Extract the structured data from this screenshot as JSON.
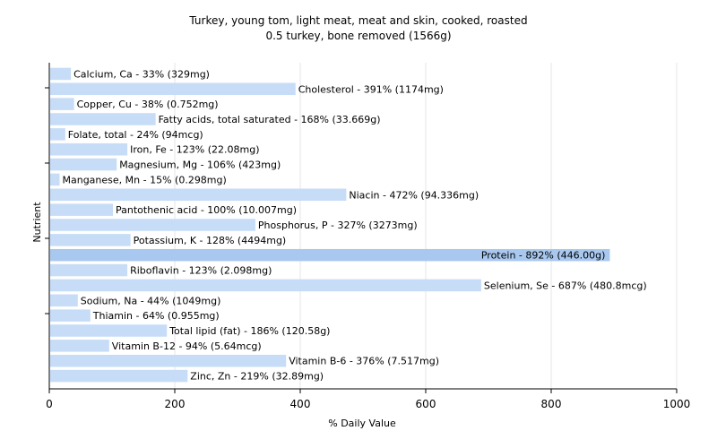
{
  "chart_data": {
    "type": "bar",
    "orientation": "horizontal",
    "title": "Turkey, young tom, light meat, meat and skin, cooked, roasted",
    "subtitle": "0.5 turkey, bone removed (1566g)",
    "xlabel": "% Daily Value",
    "ylabel": "Nutrient",
    "xlim": [
      0,
      1000
    ],
    "xticks": [
      "0",
      "200",
      "400",
      "600",
      "800",
      "1000"
    ],
    "grid": "vertical",
    "bar_color": "#c6dcf7",
    "highlight_color": "#a9c8ef",
    "categories": [
      "Calcium, Ca",
      "Cholesterol",
      "Copper, Cu",
      "Fatty acids, total saturated",
      "Folate, total",
      "Iron, Fe",
      "Magnesium, Mg",
      "Manganese, Mn",
      "Niacin",
      "Pantothenic acid",
      "Phosphorus, P",
      "Potassium, K",
      "Protein",
      "Riboflavin",
      "Selenium, Se",
      "Sodium, Na",
      "Thiamin",
      "Total lipid (fat)",
      "Vitamin B-12",
      "Vitamin B-6",
      "Zinc, Zn"
    ],
    "values": [
      33,
      391,
      38,
      168,
      24,
      123,
      106,
      15,
      472,
      100,
      327,
      128,
      892,
      123,
      687,
      44,
      64,
      186,
      94,
      376,
      219
    ],
    "labels": [
      "Calcium, Ca - 33% (329mg)",
      "Cholesterol - 391% (1174mg)",
      "Copper, Cu - 38% (0.752mg)",
      "Fatty acids, total saturated - 168% (33.669g)",
      "Folate, total - 24% (94mcg)",
      "Iron, Fe - 123% (22.08mg)",
      "Magnesium, Mg - 106% (423mg)",
      "Manganese, Mn - 15% (0.298mg)",
      "Niacin - 472% (94.336mg)",
      "Pantothenic acid - 100% (10.007mg)",
      "Phosphorus, P - 327% (3273mg)",
      "Potassium, K - 128% (4494mg)",
      "Protein - 892% (446.00g)",
      "Riboflavin - 123% (2.098mg)",
      "Selenium, Se - 687% (480.8mcg)",
      "Sodium, Na - 44% (1049mg)",
      "Thiamin - 64% (0.955mg)",
      "Total lipid (fat) - 186% (120.58g)",
      "Vitamin B-12 - 94% (5.64mcg)",
      "Vitamin B-6 - 376% (7.517mg)",
      "Zinc, Zn - 219% (32.89mg)"
    ],
    "label_inside": [
      false,
      false,
      false,
      false,
      false,
      false,
      false,
      false,
      false,
      false,
      false,
      false,
      true,
      false,
      false,
      false,
      false,
      false,
      false,
      false,
      false
    ]
  }
}
